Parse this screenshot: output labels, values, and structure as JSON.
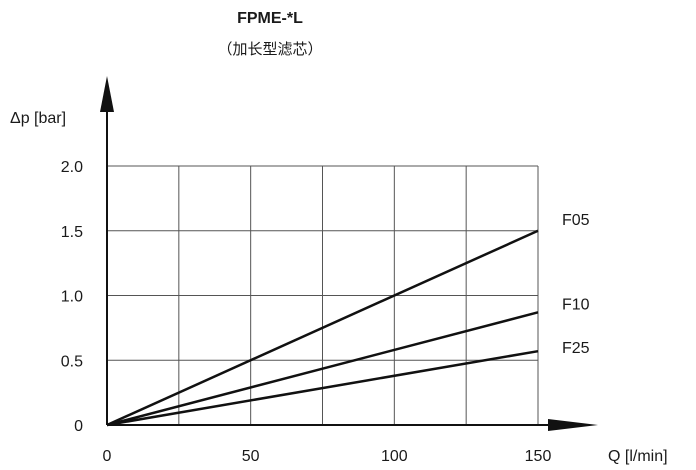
{
  "chart_data": {
    "type": "line",
    "title": "FPME-*L",
    "subtitle": "（加长型滤芯）",
    "xlabel": "Q [l/min]",
    "ylabel": "Δp [bar]",
    "xlim": [
      0,
      150
    ],
    "ylim": [
      0,
      2.0
    ],
    "x_ticks": [
      "0",
      "50",
      "100",
      "150"
    ],
    "y_ticks": [
      "0",
      "0.5",
      "1.0",
      "1.5",
      "2.0"
    ],
    "grid": true,
    "series": [
      {
        "name": "F05",
        "x": [
          0,
          150
        ],
        "y": [
          0,
          1.5
        ]
      },
      {
        "name": "F10",
        "x": [
          0,
          150
        ],
        "y": [
          0,
          0.87
        ]
      },
      {
        "name": "F25",
        "x": [
          0,
          150
        ],
        "y": [
          0,
          0.57
        ]
      }
    ]
  }
}
